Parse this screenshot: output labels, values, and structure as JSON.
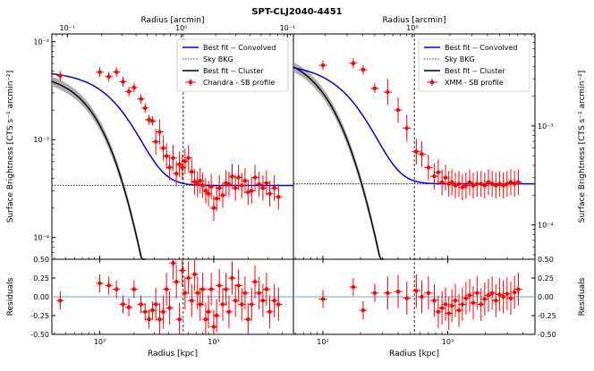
{
  "figure": {
    "title": "SPT-CLJ2040-4451"
  },
  "chart_data": [
    {
      "type": "line",
      "panel": "left",
      "title": "SPT-CLJ2040-4451",
      "xlabel": "Radius [kpc]",
      "x2label": "Radius [arcmin]",
      "ylabel": "Surface Brightness [CTS s⁻¹ arcmin⁻²]",
      "residual_ylabel": "Residuals",
      "xscale": "log",
      "xlim": [
        38,
        5000
      ],
      "ylim": [
        6e-05,
        0.012
      ],
      "residual_ylim": [
        -0.5,
        0.5
      ],
      "residual_ticks": [
        "0.50",
        "0.25",
        "0.00",
        "-0.25",
        "-0.50"
      ],
      "x_ticks": [
        {
          "value": 100,
          "label": "10²"
        },
        {
          "value": 1000,
          "label": "10³"
        }
      ],
      "y_ticks": [
        {
          "value": 0.01,
          "label": "10⁻²"
        },
        {
          "value": 0.001,
          "label": "10⁻³"
        },
        {
          "value": 0.0001,
          "label": "10⁻⁴"
        }
      ],
      "x2_ticks": [
        {
          "value": 0.1,
          "label": "10⁻¹"
        },
        {
          "value": 1,
          "label": "10⁰"
        }
      ],
      "arcmin_to_kpc": 520,
      "r500_kpc": 540,
      "sky_bkg": 0.00034,
      "legend": [
        "Best fit -- Convolved",
        "Sky BKG",
        "Best fit -- Cluster",
        "Chandra - SB profile"
      ],
      "legend_position": "top-right",
      "model": {
        "s0": 0.0047,
        "rc": 250,
        "beta": 1.25
      },
      "cluster": {
        "s0": 0.0048,
        "rc": 170,
        "beta": 1.55
      },
      "series": [
        {
          "name": "Chandra - SB profile",
          "color": "#ff0000",
          "x": [
            45,
            100,
            120,
            140,
            160,
            180,
            200,
            230,
            250,
            270,
            290,
            310,
            335,
            360,
            385,
            410,
            440,
            470,
            500,
            530,
            560,
            600,
            640,
            680,
            720,
            760,
            800,
            850,
            900,
            950,
            1000,
            1060,
            1120,
            1200,
            1280,
            1360,
            1450,
            1550,
            1650,
            1760,
            1880,
            2000,
            2150,
            2300,
            2500,
            2700,
            2900,
            3100,
            3400,
            3700
          ],
          "y": [
            0.0045,
            0.0049,
            0.0044,
            0.0049,
            0.0039,
            0.0031,
            0.0034,
            0.0026,
            0.0021,
            0.0016,
            0.00155,
            0.00095,
            0.0012,
            0.00082,
            0.00068,
            0.00052,
            0.00065,
            0.00045,
            0.00056,
            0.00052,
            0.0006,
            0.00065,
            0.00047,
            0.00037,
            0.00035,
            0.00038,
            0.00034,
            0.0003,
            0.00028,
            0.00033,
            0.0002,
            0.00025,
            0.00032,
            0.00027,
            0.00036,
            0.00035,
            0.00042,
            0.00032,
            0.00041,
            0.00034,
            0.00038,
            0.00029,
            0.0003,
            0.00041,
            0.00035,
            0.00032,
            0.00036,
            0.00028,
            0.00032,
            0.00026
          ],
          "residuals": [
            -0.05,
            0.18,
            0.15,
            0.1,
            -0.1,
            -0.14,
            0.1,
            -0.1,
            -0.2,
            -0.3,
            -0.18,
            -0.1,
            -0.3,
            -0.2,
            0.1,
            -0.15,
            0.45,
            0.2,
            -0.3,
            0.35,
            0.05,
            0.25,
            -0.05,
            0.3,
            0.05,
            -0.1,
            0.1,
            -0.3,
            -0.2,
            0.1,
            -0.4,
            -0.25,
            0.15,
            -0.1,
            0.1,
            -0.2,
            0.25,
            -0.05,
            0.15,
            -0.1,
            0.05,
            -0.3,
            -0.1,
            0.2,
            0.05,
            -0.05,
            0.1,
            -0.2,
            -0.05,
            -0.1
          ]
        }
      ]
    },
    {
      "type": "line",
      "panel": "right",
      "xlabel": "Radius [kpc]",
      "x2label": "Radius [arcmin]",
      "ylabel": "Surface Brightness [CTS s⁻¹ arcmin⁻²]",
      "residual_ylabel": "Residuals",
      "xscale": "log",
      "xlim": [
        58,
        5000
      ],
      "ylim": [
        4.5e-05,
        0.0085
      ],
      "residual_ylim": [
        -0.5,
        0.5
      ],
      "residual_ticks": [
        "0.50",
        "0.25",
        "0.00",
        "-0.25",
        "-0.50"
      ],
      "x_ticks": [
        {
          "value": 100,
          "label": "10²"
        },
        {
          "value": 1000,
          "label": "10³"
        }
      ],
      "y_ticks": [
        {
          "value": 0.001,
          "label": "10⁻³"
        },
        {
          "value": 0.0001,
          "label": "10⁻⁴"
        }
      ],
      "x2_ticks": [
        {
          "value": 0.1,
          "label": "10⁻¹"
        },
        {
          "value": 1,
          "label": "10⁰"
        }
      ],
      "arcmin_to_kpc": 520,
      "r500_kpc": 540,
      "sky_bkg": 0.00026,
      "legend": [
        "Best fit -- Convolved",
        "Sky BKG",
        "Best fit -- Cluster",
        "XMM - SB profile"
      ],
      "legend_position": "top-right",
      "model": {
        "s0": 0.0041,
        "rc": 330,
        "beta": 1.55
      },
      "cluster": {
        "s0": 0.0056,
        "rc": 200,
        "beta": 1.6
      },
      "series": [
        {
          "name": "XMM - SB profile",
          "color": "#ff0000",
          "x": [
            100,
            175,
            210,
            260,
            330,
            400,
            470,
            560,
            620,
            700,
            780,
            840,
            900,
            960,
            1020,
            1080,
            1150,
            1230,
            1310,
            1400,
            1500,
            1600,
            1720,
            1850,
            1980,
            2120,
            2270,
            2430,
            2600,
            2790,
            2990,
            3200,
            3430,
            3680
          ],
          "y": [
            0.0041,
            0.0043,
            0.0037,
            0.0024,
            0.0022,
            0.00145,
            0.00095,
            0.00055,
            0.00052,
            0.00038,
            0.00031,
            0.00034,
            0.00027,
            0.0003,
            0.00026,
            0.00027,
            0.00025,
            0.00026,
            0.00024,
            0.00025,
            0.00027,
            0.00025,
            0.00026,
            0.00026,
            0.00025,
            0.00027,
            0.00026,
            0.00025,
            0.00026,
            0.00025,
            0.00026,
            0.00027,
            0.00026,
            0.00027
          ],
          "residuals": [
            -0.03,
            0.13,
            -0.18,
            0.05,
            0.05,
            0.07,
            -0.02,
            0.08,
            0.0,
            0.05,
            -0.05,
            -0.2,
            -0.15,
            -0.1,
            -0.22,
            -0.12,
            -0.05,
            -0.18,
            -0.1,
            -0.02,
            0.02,
            -0.08,
            0.05,
            -0.1,
            -0.03,
            0.02,
            0.05,
            -0.05,
            0.03,
            0.0,
            0.04,
            -0.02,
            0.06,
            0.1
          ]
        }
      ]
    }
  ]
}
